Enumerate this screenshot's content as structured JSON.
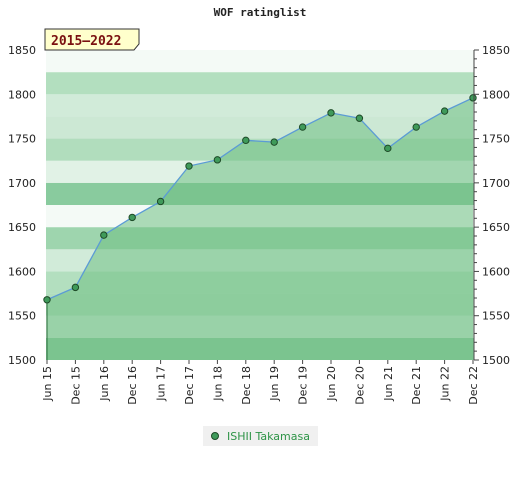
{
  "title": "WOF ratinglist",
  "chart_data": {
    "type": "area",
    "title": "WOF ratinglist",
    "range_label": "2015–2022",
    "categories": [
      "Jun 15",
      "Dec 15",
      "Jun 16",
      "Dec 16",
      "Jun 17",
      "Dec 17",
      "Jun 18",
      "Dec 18",
      "Jun 19",
      "Dec 19",
      "Jun 20",
      "Dec 20",
      "Jun 21",
      "Dec 21",
      "Jun 22",
      "Dec 22"
    ],
    "series": [
      {
        "name": "ISHII Takamasa",
        "values": [
          1568,
          1582,
          1641,
          1661,
          1679,
          1719,
          1726,
          1748,
          1746,
          1763,
          1779,
          1773,
          1739,
          1763,
          1781,
          1796
        ]
      }
    ],
    "ylim": [
      1500,
      1850
    ],
    "yticks": [
      1500,
      1550,
      1600,
      1650,
      1700,
      1750,
      1800,
      1850
    ],
    "y_axes": "left and right",
    "legend_position": "bottom-center",
    "colors": {
      "line": "#5b9bd5",
      "area": "#6fbf84",
      "marker": "#3f9a5a",
      "marker_edge": "#1d4a27"
    }
  },
  "legend": {
    "label": "ISHII Takamasa"
  }
}
